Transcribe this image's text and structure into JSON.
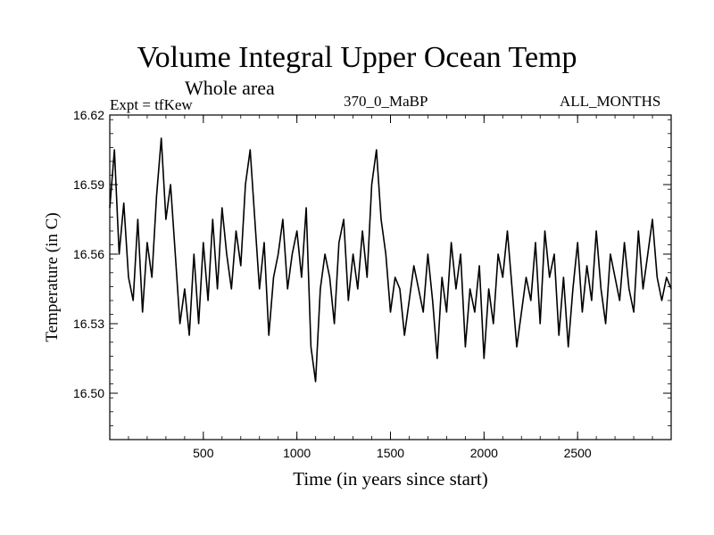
{
  "chart_data": {
    "type": "line",
    "title": "Volume Integral Upper Ocean Temp",
    "subtitle": "Whole area",
    "expt_label": "Expt = tfKew",
    "run_label": "370_0_MaBP",
    "months_label": "ALL_MONTHS",
    "xlabel": "Time (in years since start)",
    "ylabel": "Temperature (in C)",
    "xlim": [
      0,
      3000
    ],
    "ylim": [
      16.48,
      16.62
    ],
    "xticks": [
      500,
      1000,
      1500,
      2000,
      2500
    ],
    "yticks": [
      16.5,
      16.53,
      16.56,
      16.59,
      16.62
    ],
    "ytick_labels": [
      "16.50",
      "16.53",
      "16.56",
      "16.59",
      "16.62"
    ],
    "grid": false,
    "series_color": "#000000",
    "series": [
      {
        "x": [
          0,
          25,
          50,
          75,
          100,
          125,
          150,
          175,
          200,
          225,
          250,
          275,
          300,
          325,
          350,
          375,
          400,
          425,
          450,
          475,
          500,
          525,
          550,
          575,
          600,
          625,
          650,
          675,
          700,
          725,
          750,
          775,
          800,
          825,
          850,
          875,
          900,
          925,
          950,
          975,
          1000,
          1025,
          1050,
          1075,
          1100,
          1125,
          1150,
          1175,
          1200,
          1225,
          1250,
          1275,
          1300,
          1325,
          1350,
          1375,
          1400,
          1425,
          1450,
          1475,
          1500,
          1525,
          1550,
          1575,
          1600,
          1625,
          1650,
          1675,
          1700,
          1725,
          1750,
          1775,
          1800,
          1825,
          1850,
          1875,
          1900,
          1925,
          1950,
          1975,
          2000,
          2025,
          2050,
          2075,
          2100,
          2125,
          2150,
          2175,
          2200,
          2225,
          2250,
          2275,
          2300,
          2325,
          2350,
          2375,
          2400,
          2425,
          2450,
          2475,
          2500,
          2525,
          2550,
          2575,
          2600,
          2625,
          2650,
          2675,
          2700,
          2725,
          2750,
          2775,
          2800,
          2825,
          2850,
          2875,
          2900,
          2925,
          2950,
          2975,
          3000
        ],
        "values": [
          16.58,
          16.605,
          16.56,
          16.582,
          16.55,
          16.54,
          16.575,
          16.535,
          16.565,
          16.55,
          16.585,
          16.61,
          16.575,
          16.59,
          16.56,
          16.53,
          16.545,
          16.525,
          16.56,
          16.53,
          16.565,
          16.54,
          16.575,
          16.545,
          16.58,
          16.56,
          16.545,
          16.57,
          16.555,
          16.59,
          16.605,
          16.575,
          16.545,
          16.565,
          16.525,
          16.55,
          16.56,
          16.575,
          16.545,
          16.56,
          16.57,
          16.55,
          16.58,
          16.52,
          16.505,
          16.545,
          16.56,
          16.55,
          16.53,
          16.565,
          16.575,
          16.54,
          16.56,
          16.545,
          16.57,
          16.55,
          16.59,
          16.605,
          16.575,
          16.56,
          16.535,
          16.55,
          16.545,
          16.525,
          16.54,
          16.555,
          16.545,
          16.535,
          16.56,
          16.54,
          16.515,
          16.55,
          16.535,
          16.565,
          16.545,
          16.56,
          16.52,
          16.545,
          16.535,
          16.555,
          16.515,
          16.545,
          16.53,
          16.56,
          16.55,
          16.57,
          16.545,
          16.52,
          16.535,
          16.55,
          16.54,
          16.565,
          16.53,
          16.57,
          16.55,
          16.56,
          16.525,
          16.55,
          16.52,
          16.545,
          16.565,
          16.535,
          16.555,
          16.54,
          16.57,
          16.545,
          16.53,
          16.56,
          16.55,
          16.54,
          16.565,
          16.545,
          16.535,
          16.57,
          16.545,
          16.56,
          16.575,
          16.55,
          16.54,
          16.55,
          16.545
        ]
      }
    ]
  }
}
